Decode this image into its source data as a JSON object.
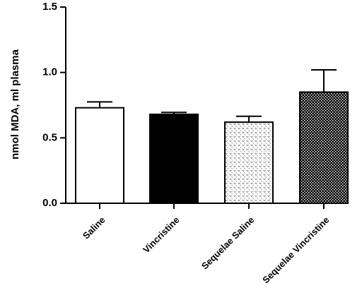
{
  "chart_data": {
    "type": "bar",
    "categories": [
      "Saline",
      "Vincristine",
      "Sequelae Saline",
      "Sequelae Vincristine"
    ],
    "values": [
      0.73,
      0.68,
      0.62,
      0.85
    ],
    "error_upper": [
      0.775,
      0.695,
      0.665,
      1.02
    ],
    "ylabel": "nmol MDA, ml plasma",
    "ylim": [
      0,
      1.5
    ],
    "yticks": [
      "0.0",
      "0.5",
      "1.0",
      "1.5"
    ],
    "ytick_values": [
      0,
      0.5,
      1.0,
      1.5
    ],
    "fills": [
      "white",
      "solid-black",
      "light-dotted",
      "dark-checkered"
    ],
    "grid": false,
    "colors": {
      "bar_edge": "#000000",
      "solid": "#000000",
      "background": "#ffffff"
    }
  }
}
